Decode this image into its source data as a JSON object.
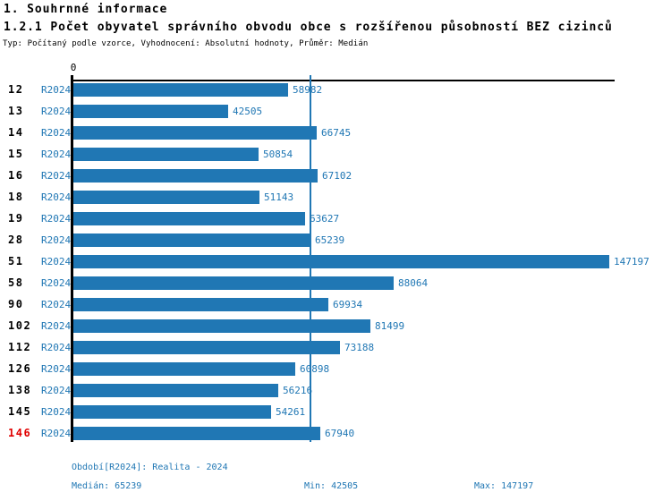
{
  "header": {
    "title": "1. Souhrnné informace",
    "subtitle": "1.2.1 Počet obyvatel správního obvodu obce s rozšířenou působností BEZ cizinců",
    "meta": "Typ: Počítaný podle vzorce, Vyhodnocení: Absolutní hodnoty, Průměr: Medián"
  },
  "colors": {
    "bar_blue": "#2077b4",
    "text_blue": "#2077b4",
    "highlight_red": "#e00000",
    "axis_black": "#000000"
  },
  "chart_data": {
    "type": "bar",
    "orientation": "horizontal",
    "title": "1.2.1 Počet obyvatel správního obvodu obce s rozšířenou působností BEZ cizinců",
    "axis_origin_label": "0",
    "series_label": "R2024",
    "categories": [
      "12",
      "13",
      "14",
      "15",
      "16",
      "18",
      "19",
      "28",
      "51",
      "58",
      "90",
      "102",
      "112",
      "126",
      "138",
      "145",
      "146"
    ],
    "values": [
      58982,
      42505,
      66745,
      50854,
      67102,
      51143,
      63627,
      65239,
      147197,
      88064,
      69934,
      81499,
      73188,
      60898,
      56216,
      54261,
      67940
    ],
    "highlighted_category": "146",
    "median_line_value": 65239,
    "axis_max": 148900,
    "legend_position": "none",
    "grid": false
  },
  "footer": {
    "period": "Období[R2024]: Realita - 2024",
    "median": "Medián: 65239",
    "min": "Min: 42505",
    "max": "Max: 147197"
  }
}
